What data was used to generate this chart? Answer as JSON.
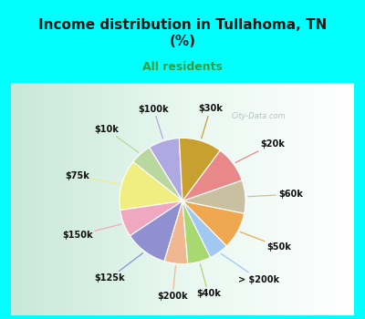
{
  "title": "Income distribution in Tullahoma, TN\n(%)",
  "subtitle": "All residents",
  "title_color": "#1a1a1a",
  "subtitle_color": "#3a9a3a",
  "bg_cyan": "#00ffff",
  "bg_chart_color1": "#d0ede0",
  "bg_chart_color2": "#ffffff",
  "watermark": "City-Data.com",
  "labels": [
    "$100k",
    "$10k",
    "$75k",
    "$150k",
    "$125k",
    "$200k",
    "$40k",
    "> $200k",
    "$50k",
    "$60k",
    "$20k",
    "$30k"
  ],
  "values": [
    8.0,
    5.5,
    13.0,
    7.0,
    11.0,
    6.0,
    6.0,
    5.0,
    9.5,
    8.5,
    9.5,
    11.0
  ],
  "colors": [
    "#b0a8e0",
    "#b8d8a0",
    "#f0ee80",
    "#f0a8c0",
    "#9090d0",
    "#f0b890",
    "#a8d870",
    "#a0c8f0",
    "#f0a850",
    "#c8c0a0",
    "#e88888",
    "#c8a030"
  ],
  "startangle": 93,
  "label_fontsize": 7,
  "label_color": "#111111",
  "title_fontsize": 11,
  "subtitle_fontsize": 9
}
